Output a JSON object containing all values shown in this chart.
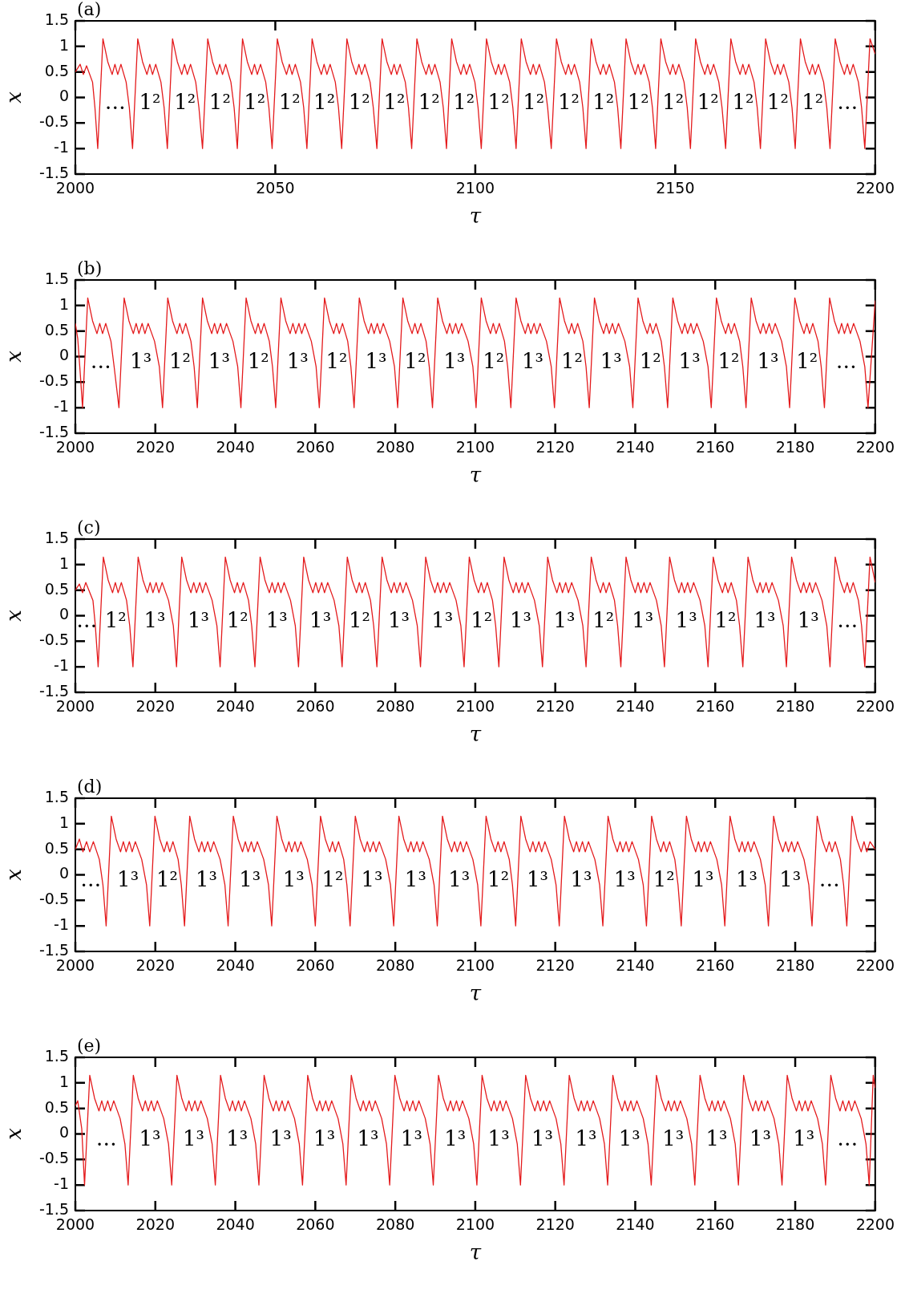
{
  "chart_data": [
    {
      "type": "line",
      "title": "(a)",
      "xlabel": "τ",
      "ylabel": "x",
      "color": "#e41a1c",
      "xlim": [
        2000,
        2200
      ],
      "ylim": [
        -1.5,
        1.5
      ],
      "xticks": [
        2000,
        2050,
        2100,
        2150,
        2200
      ],
      "yticks": [
        -1.5,
        -1,
        -0.5,
        0,
        0.5,
        1,
        1.5
      ],
      "x": [
        2000,
        2001.2,
        2002,
        2002.8,
        2004.3,
        2004.9,
        2005.6,
        2006.9,
        2008.1,
        2009.2,
        2009.9,
        2010.6,
        2011.4,
        2012.7,
        2013.5,
        2014.3,
        2015.6,
        2016.8,
        2017.9,
        2018.6,
        2019.3,
        2020.1,
        2021.4,
        2022.2,
        2023,
        2024.3,
        2025.5,
        2026.6,
        2027.3,
        2028,
        2028.8,
        2030.1,
        2030.9,
        2031.8,
        2033.1,
        2034.3,
        2035.4,
        2036.1,
        2036.8,
        2037.6,
        2038.9,
        2039.7,
        2040.5,
        2041.8,
        2043,
        2044.1,
        2044.8,
        2045.5,
        2046.3,
        2047.6,
        2048.4,
        2049.2,
        2050.5,
        2051.7,
        2052.8,
        2053.5,
        2054.2,
        2055,
        2056.3,
        2057.1,
        2057.9,
        2059.2,
        2060.4,
        2061.5,
        2062.2,
        2062.9,
        2063.7,
        2065,
        2065.8,
        2066.6,
        2067.9,
        2069.1,
        2070.2,
        2070.9,
        2071.6,
        2072.4,
        2073.7,
        2074.5,
        2075.4,
        2076.7,
        2077.9,
        2079,
        2079.7,
        2080.4,
        2081.2,
        2082.5,
        2083.3,
        2084.1,
        2085.4,
        2086.6,
        2087.7,
        2088.4,
        2089.1,
        2089.9,
        2091.2,
        2092,
        2092.8,
        2094.1,
        2095.3,
        2096.4,
        2097.1,
        2097.8,
        2098.6,
        2099.9,
        2100.7,
        2101.5,
        2102.8,
        2104,
        2105.1,
        2105.8,
        2106.5,
        2107.3,
        2108.6,
        2109.4,
        2110.2,
        2111.5,
        2112.7,
        2113.8,
        2114.5,
        2115.2,
        2116,
        2117.3,
        2118.1,
        2119,
        2120.3,
        2121.5,
        2122.6,
        2123.3,
        2124,
        2124.8,
        2126.1,
        2126.9,
        2127.7,
        2129,
        2130.2,
        2131.3,
        2132,
        2132.7,
        2133.5,
        2134.8,
        2135.6,
        2136.4,
        2137.7,
        2138.9,
        2140,
        2140.7,
        2141.4,
        2142.2,
        2143.5,
        2144.3,
        2145.1,
        2146.4,
        2147.6,
        2148.7,
        2149.4,
        2150.1,
        2150.9,
        2152.2,
        2153,
        2153.8,
        2155.1,
        2156.3,
        2157.4,
        2158.1,
        2158.8,
        2159.6,
        2160.9,
        2161.7,
        2162.6,
        2163.9,
        2165.1,
        2166.2,
        2166.9,
        2167.6,
        2168.4,
        2169.7,
        2170.5,
        2171.3,
        2172.6,
        2173.8,
        2174.9,
        2175.6,
        2176.3,
        2177.1,
        2178.4,
        2179.2,
        2180,
        2181.3,
        2182.5,
        2183.6,
        2184.3,
        2185,
        2185.8,
        2187.1,
        2187.9,
        2188.7,
        2190,
        2191.2,
        2192.3,
        2193,
        2193.7,
        2194.5,
        2195.8,
        2196.6,
        2197.4,
        2198.7,
        2200
      ],
      "values": [
        0.5,
        0.65,
        0.45,
        0.62,
        0.3,
        -0.2,
        -1,
        1.15,
        0.7,
        0.45,
        0.65,
        0.45,
        0.65,
        0.3,
        -0.2,
        -1,
        1.15,
        0.7,
        0.45,
        0.65,
        0.45,
        0.65,
        0.3,
        -0.2,
        -1,
        1.15,
        0.7,
        0.45,
        0.65,
        0.45,
        0.65,
        0.3,
        -0.2,
        -1,
        1.15,
        0.7,
        0.45,
        0.65,
        0.45,
        0.65,
        0.3,
        -0.2,
        -1,
        1.15,
        0.7,
        0.45,
        0.65,
        0.45,
        0.65,
        0.3,
        -0.2,
        -1,
        1.15,
        0.7,
        0.45,
        0.65,
        0.45,
        0.65,
        0.3,
        -0.2,
        -1,
        1.15,
        0.7,
        0.45,
        0.65,
        0.45,
        0.65,
        0.3,
        -0.2,
        -1,
        1.15,
        0.7,
        0.45,
        0.65,
        0.45,
        0.65,
        0.3,
        -0.2,
        -1,
        1.15,
        0.7,
        0.45,
        0.65,
        0.45,
        0.65,
        0.3,
        -0.2,
        -1,
        1.15,
        0.7,
        0.45,
        0.65,
        0.45,
        0.65,
        0.3,
        -0.2,
        -1,
        1.15,
        0.7,
        0.45,
        0.65,
        0.45,
        0.65,
        0.3,
        -0.2,
        -1,
        1.15,
        0.7,
        0.45,
        0.65,
        0.45,
        0.65,
        0.3,
        -0.2,
        -1,
        1.15,
        0.7,
        0.45,
        0.65,
        0.45,
        0.65,
        0.3,
        -0.2,
        -1,
        1.15,
        0.7,
        0.45,
        0.65,
        0.45,
        0.65,
        0.3,
        -0.2,
        -1,
        1.15,
        0.7,
        0.45,
        0.65,
        0.45,
        0.65,
        0.3,
        -0.2,
        -1,
        1.15,
        0.7,
        0.45,
        0.65,
        0.45,
        0.65,
        0.3,
        -0.2,
        -1,
        1.15,
        0.7,
        0.45,
        0.65,
        0.45,
        0.65,
        0.3,
        -0.2,
        -1,
        1.15,
        0.7,
        0.45,
        0.65,
        0.45,
        0.65,
        0.3,
        -0.2,
        -1,
        1.15,
        0.7,
        0.45,
        0.65,
        0.45,
        0.65,
        0.3,
        -0.2,
        -1,
        1.15,
        0.7,
        0.45,
        0.65,
        0.45,
        0.65,
        0.3,
        -0.2,
        -1,
        1.15,
        0.7,
        0.45,
        0.65,
        0.45,
        0.65,
        0.3,
        -0.2,
        -1,
        1.15,
        0.7,
        0.45,
        0.65,
        0.45,
        0.65,
        0.3,
        -0.2,
        -1,
        1.15,
        0.85
      ],
      "annotations": [
        "…",
        "1²",
        "1²",
        "1²",
        "1²",
        "1²",
        "1²",
        "1²",
        "1²",
        "1²",
        "1²",
        "1²",
        "1²",
        "1²",
        "1²",
        "1²",
        "1²",
        "1²",
        "1²",
        "1²",
        "1²",
        "…"
      ]
    },
    {
      "type": "line",
      "title": "(b)",
      "xlabel": "τ",
      "ylabel": "x",
      "color": "#e41a1c",
      "xlim": [
        2000,
        2200
      ],
      "ylim": [
        -1.5,
        1.5
      ],
      "xticks": [
        2000,
        2020,
        2040,
        2060,
        2080,
        2100,
        2120,
        2140,
        2160,
        2180,
        2200
      ],
      "yticks": [
        -1.5,
        -1,
        -0.5,
        0,
        0.5,
        1,
        1.5
      ],
      "x": [
        2000,
        2000.6,
        2001.2,
        2001.8,
        2003.1,
        2004.3,
        2005.4,
        2006.1,
        2006.8,
        2007.6,
        2008.9,
        2009.7,
        2010.9,
        2012.2,
        2013.4,
        2014.5,
        2015.2,
        2015.9,
        2016.7,
        2017.4,
        2018.2,
        2019.8,
        2021,
        2021.8,
        2023.1,
        2024.3,
        2025.4,
        2026.1,
        2026.8,
        2027.6,
        2028.9,
        2029.7,
        2030.5,
        2031.8,
        2033,
        2034.1,
        2034.8,
        2035.5,
        2036.3,
        2037,
        2037.8,
        2039.4,
        2040.6,
        2041.4,
        2042.7,
        2043.9,
        2045,
        2045.7,
        2046.4,
        2047.2,
        2048.5,
        2049.3,
        2050.1,
        2051.4,
        2052.6,
        2053.7,
        2054.4,
        2055.1,
        2055.9,
        2056.6,
        2057.4,
        2059,
        2060.2,
        2061,
        2062.3,
        2063.5,
        2064.6,
        2065.3,
        2066,
        2066.8,
        2068.1,
        2068.9,
        2069.7,
        2071,
        2072.2,
        2073.3,
        2074,
        2074.7,
        2075.5,
        2076.2,
        2077,
        2078.6,
        2079.8,
        2080.6,
        2081.9,
        2083.1,
        2084.2,
        2084.9,
        2085.6,
        2086.4,
        2087.7,
        2088.5,
        2089.3,
        2090.6,
        2091.8,
        2092.9,
        2093.6,
        2094.3,
        2095.1,
        2095.8,
        2096.6,
        2098.2,
        2099.4,
        2100.2,
        2101.5,
        2102.7,
        2103.8,
        2104.5,
        2105.2,
        2106,
        2107.3,
        2108.1,
        2108.9,
        2110.2,
        2111.4,
        2112.5,
        2113.2,
        2113.9,
        2114.7,
        2115.4,
        2116.2,
        2117.8,
        2119,
        2119.8,
        2121.1,
        2122.3,
        2123.4,
        2124.1,
        2124.8,
        2125.6,
        2126.9,
        2127.7,
        2128.5,
        2129.8,
        2131,
        2132.1,
        2132.8,
        2133.5,
        2134.3,
        2135,
        2135.8,
        2137.4,
        2138.6,
        2139.4,
        2140.7,
        2141.9,
        2143,
        2143.7,
        2144.4,
        2145.2,
        2146.5,
        2147.3,
        2148.1,
        2149.4,
        2150.6,
        2151.7,
        2152.4,
        2153.1,
        2153.9,
        2154.6,
        2155.4,
        2157,
        2158.2,
        2159,
        2160.3,
        2161.5,
        2162.6,
        2163.3,
        2164,
        2164.8,
        2166.1,
        2166.9,
        2167.7,
        2169,
        2170.2,
        2171.3,
        2172,
        2172.7,
        2173.5,
        2174.2,
        2175,
        2176.6,
        2177.8,
        2178.6,
        2179.9,
        2181.1,
        2182.2,
        2182.9,
        2183.6,
        2184.4,
        2185.7,
        2186.5,
        2187.3,
        2188.6,
        2189.8,
        2190.9,
        2191.6,
        2192.3,
        2193.1,
        2193.8,
        2194.6,
        2196.2,
        2197.4,
        2198.2,
        2200
      ],
      "values": [
        0.65,
        0.35,
        -0.3,
        -1,
        1.15,
        0.7,
        0.45,
        0.65,
        0.45,
        0.65,
        0.3,
        -0.2,
        -1,
        1.15,
        0.7,
        0.45,
        0.65,
        0.45,
        0.65,
        0.45,
        0.65,
        0.3,
        -0.2,
        -1,
        1.15,
        0.7,
        0.45,
        0.65,
        0.45,
        0.65,
        0.3,
        -0.2,
        -1,
        1.15,
        0.7,
        0.45,
        0.65,
        0.45,
        0.65,
        0.45,
        0.65,
        0.3,
        -0.2,
        -1,
        1.15,
        0.7,
        0.45,
        0.65,
        0.45,
        0.65,
        0.3,
        -0.2,
        -1,
        1.15,
        0.7,
        0.45,
        0.65,
        0.45,
        0.65,
        0.45,
        0.65,
        0.3,
        -0.2,
        -1,
        1.15,
        0.7,
        0.45,
        0.65,
        0.45,
        0.65,
        0.3,
        -0.2,
        -1,
        1.15,
        0.7,
        0.45,
        0.65,
        0.45,
        0.65,
        0.45,
        0.65,
        0.3,
        -0.2,
        -1,
        1.15,
        0.7,
        0.45,
        0.65,
        0.45,
        0.65,
        0.3,
        -0.2,
        -1,
        1.15,
        0.7,
        0.45,
        0.65,
        0.45,
        0.65,
        0.45,
        0.65,
        0.3,
        -0.2,
        -1,
        1.15,
        0.7,
        0.45,
        0.65,
        0.45,
        0.65,
        0.3,
        -0.2,
        -1,
        1.15,
        0.7,
        0.45,
        0.65,
        0.45,
        0.65,
        0.45,
        0.65,
        0.3,
        -0.2,
        -1,
        1.15,
        0.7,
        0.45,
        0.65,
        0.45,
        0.65,
        0.3,
        -0.2,
        -1,
        1.15,
        0.7,
        0.45,
        0.65,
        0.45,
        0.65,
        0.45,
        0.65,
        0.3,
        -0.2,
        -1,
        1.15,
        0.7,
        0.45,
        0.65,
        0.45,
        0.65,
        0.3,
        -0.2,
        -1,
        1.15,
        0.7,
        0.45,
        0.65,
        0.45,
        0.65,
        0.45,
        0.65,
        0.3,
        -0.2,
        -1,
        1.15,
        0.7,
        0.45,
        0.65,
        0.45,
        0.65,
        0.3,
        -0.2,
        -1,
        1.15,
        0.7,
        0.45,
        0.65,
        0.45,
        0.65,
        0.45,
        0.65,
        0.3,
        -0.2,
        -1,
        1.15,
        0.7,
        0.45,
        0.65,
        0.45,
        0.65,
        0.3,
        -0.2,
        -1,
        1.15,
        0.7,
        0.45,
        0.65,
        0.45,
        0.65,
        0.45,
        0.65,
        0.3,
        -0.2,
        -1,
        1.1
      ],
      "annotations": [
        "…",
        "1³",
        "1²",
        "1³",
        "1²",
        "1³",
        "1²",
        "1³",
        "1²",
        "1³",
        "1²",
        "1³",
        "1²",
        "1³",
        "1²",
        "1³",
        "1²",
        "1³",
        "1²",
        "…"
      ]
    },
    {
      "type": "line",
      "title": "(c)",
      "xlabel": "τ",
      "ylabel": "x",
      "color": "#e41a1c",
      "xlim": [
        2000,
        2200
      ],
      "ylim": [
        -1.5,
        1.5
      ],
      "xticks": [
        2000,
        2020,
        2040,
        2060,
        2080,
        2100,
        2120,
        2140,
        2160,
        2180,
        2200
      ],
      "yticks": [
        -1.5,
        -1,
        -0.5,
        0,
        0.5,
        1,
        1.5
      ],
      "x": [
        2000,
        2001,
        2001.8,
        2002.6,
        2004.4,
        2005,
        2005.7,
        2007,
        2008.2,
        2009.3,
        2010,
        2010.7,
        2011.5,
        2012.8,
        2013.6,
        2014.4,
        2015.7,
        2016.9,
        2018,
        2018.7,
        2019.4,
        2020.2,
        2020.9,
        2021.7,
        2023.3,
        2024.5,
        2025.3,
        2026.6,
        2027.8,
        2028.9,
        2029.6,
        2030.3,
        2031.1,
        2031.8,
        2032.6,
        2034.2,
        2035.4,
        2036.2,
        2037.5,
        2038.7,
        2039.8,
        2040.5,
        2041.2,
        2042,
        2043.3,
        2044.1,
        2044.9,
        2046.2,
        2047.4,
        2048.5,
        2049.2,
        2049.9,
        2050.7,
        2051.4,
        2052.2,
        2053.8,
        2055,
        2055.8,
        2057.1,
        2058.3,
        2059.4,
        2060.1,
        2060.8,
        2061.6,
        2062.3,
        2063.1,
        2064.7,
        2065.9,
        2066.7,
        2068,
        2069.2,
        2070.3,
        2071,
        2071.7,
        2072.5,
        2073.8,
        2074.6,
        2075.4,
        2076.7,
        2077.9,
        2079,
        2079.7,
        2080.4,
        2081.2,
        2081.9,
        2082.7,
        2084.3,
        2085.5,
        2086.3,
        2087.6,
        2088.8,
        2089.9,
        2090.6,
        2091.3,
        2092.1,
        2092.8,
        2093.6,
        2095.2,
        2096.4,
        2097.2,
        2098.5,
        2099.7,
        2100.8,
        2101.5,
        2102.2,
        2103,
        2104.3,
        2105.1,
        2105.9,
        2107.2,
        2108.4,
        2109.5,
        2110.2,
        2110.9,
        2111.7,
        2112.4,
        2113.2,
        2114.8,
        2116,
        2116.8,
        2118.1,
        2119.3,
        2120.4,
        2121.1,
        2121.8,
        2122.6,
        2123.3,
        2124.1,
        2125.7,
        2126.9,
        2127.7,
        2129,
        2130.2,
        2131.3,
        2132,
        2132.7,
        2133.5,
        2134.8,
        2135.6,
        2136.4,
        2137.7,
        2138.9,
        2140,
        2140.7,
        2141.4,
        2142.2,
        2142.9,
        2143.7,
        2145.3,
        2146.5,
        2147.3,
        2148.6,
        2149.8,
        2150.9,
        2151.6,
        2152.3,
        2153.1,
        2153.8,
        2154.6,
        2156.2,
        2157.4,
        2158.2,
        2159.5,
        2160.7,
        2161.8,
        2162.5,
        2163.2,
        2164,
        2165.3,
        2166.1,
        2166.9,
        2168.2,
        2169.4,
        2170.5,
        2171.2,
        2171.9,
        2172.7,
        2173.4,
        2174.2,
        2175.8,
        2177,
        2177.8,
        2179.1,
        2180.3,
        2181.4,
        2182.1,
        2182.8,
        2183.6,
        2184.3,
        2185.1,
        2186.7,
        2187.9,
        2188.7,
        2190,
        2191.2,
        2192.3,
        2193,
        2193.7,
        2194.5,
        2195.8,
        2196.6,
        2197.4,
        2198.7,
        2200
      ],
      "values": [
        0.5,
        0.62,
        0.45,
        0.65,
        0.3,
        -0.2,
        -1,
        1.15,
        0.7,
        0.45,
        0.65,
        0.45,
        0.65,
        0.3,
        -0.2,
        -1,
        1.15,
        0.7,
        0.45,
        0.65,
        0.45,
        0.65,
        0.45,
        0.65,
        0.3,
        -0.2,
        -1,
        1.15,
        0.7,
        0.45,
        0.65,
        0.45,
        0.65,
        0.45,
        0.65,
        0.3,
        -0.2,
        -1,
        1.15,
        0.7,
        0.45,
        0.65,
        0.45,
        0.65,
        0.3,
        -0.2,
        -1,
        1.15,
        0.7,
        0.45,
        0.65,
        0.45,
        0.65,
        0.45,
        0.65,
        0.3,
        -0.2,
        -1,
        1.15,
        0.7,
        0.45,
        0.65,
        0.45,
        0.65,
        0.45,
        0.65,
        0.3,
        -0.2,
        -1,
        1.15,
        0.7,
        0.45,
        0.65,
        0.45,
        0.65,
        0.3,
        -0.2,
        -1,
        1.15,
        0.7,
        0.45,
        0.65,
        0.45,
        0.65,
        0.45,
        0.65,
        0.3,
        -0.2,
        -1,
        1.15,
        0.7,
        0.45,
        0.65,
        0.45,
        0.65,
        0.45,
        0.65,
        0.3,
        -0.2,
        -1,
        1.15,
        0.7,
        0.45,
        0.65,
        0.45,
        0.65,
        0.3,
        -0.2,
        -1,
        1.15,
        0.7,
        0.45,
        0.65,
        0.45,
        0.65,
        0.45,
        0.65,
        0.3,
        -0.2,
        -1,
        1.15,
        0.7,
        0.45,
        0.65,
        0.45,
        0.65,
        0.45,
        0.65,
        0.3,
        -0.2,
        -1,
        1.15,
        0.7,
        0.45,
        0.65,
        0.45,
        0.65,
        0.3,
        -0.2,
        -1,
        1.15,
        0.7,
        0.45,
        0.65,
        0.45,
        0.65,
        0.45,
        0.65,
        0.3,
        -0.2,
        -1,
        1.15,
        0.7,
        0.45,
        0.65,
        0.45,
        0.65,
        0.45,
        0.65,
        0.3,
        -0.2,
        -1,
        1.15,
        0.7,
        0.45,
        0.65,
        0.45,
        0.65,
        0.3,
        -0.2,
        -1,
        1.15,
        0.7,
        0.45,
        0.65,
        0.45,
        0.65,
        0.45,
        0.65,
        0.3,
        -0.2,
        -1,
        1.15,
        0.7,
        0.45,
        0.65,
        0.45,
        0.65,
        0.45,
        0.65,
        0.3,
        -0.2,
        -1,
        1.15,
        0.7,
        0.45,
        0.65,
        0.45,
        0.65,
        0.3,
        -0.2,
        -1,
        1.15,
        0.65
      ],
      "annotations": [
        "…",
        "1²",
        "1³",
        "1³",
        "1²",
        "1³",
        "1³",
        "1²",
        "1³",
        "1³",
        "1²",
        "1³",
        "1³",
        "1²",
        "1³",
        "1³",
        "1²",
        "1³",
        "1³",
        "…"
      ]
    },
    {
      "type": "line",
      "title": "(d)",
      "xlabel": "τ",
      "ylabel": "x",
      "color": "#e41a1c",
      "xlim": [
        2000,
        2200
      ],
      "ylim": [
        -1.5,
        1.5
      ],
      "xticks": [
        2000,
        2020,
        2040,
        2060,
        2080,
        2100,
        2120,
        2140,
        2160,
        2180,
        2200
      ],
      "yticks": [
        -1.5,
        -1,
        -0.5,
        0,
        0.5,
        1,
        1.5
      ],
      "x": [
        2000,
        2001,
        2001.9,
        2002.8,
        2003.6,
        2004.5,
        2006,
        2006.9,
        2007.7,
        2009,
        2010.2,
        2011.3,
        2012,
        2012.7,
        2013.5,
        2014.2,
        2015,
        2016.6,
        2017.8,
        2018.6,
        2019.9,
        2021.1,
        2022.2,
        2022.9,
        2023.6,
        2024.4,
        2025.7,
        2026.5,
        2027.3,
        2028.6,
        2029.8,
        2030.9,
        2031.6,
        2032.3,
        2033.1,
        2033.8,
        2034.6,
        2036.2,
        2037.4,
        2038.2,
        2039.5,
        2040.7,
        2041.8,
        2042.5,
        2043.2,
        2044,
        2044.7,
        2045.5,
        2047.1,
        2048.3,
        2049.1,
        2050.4,
        2051.6,
        2052.7,
        2053.4,
        2054.1,
        2054.9,
        2055.6,
        2056.4,
        2058,
        2059.2,
        2060,
        2061.3,
        2062.5,
        2063.6,
        2064.3,
        2065,
        2065.8,
        2067.1,
        2067.9,
        2068.7,
        2070,
        2071.2,
        2072.3,
        2073,
        2073.7,
        2074.5,
        2075.2,
        2076,
        2077.6,
        2078.8,
        2079.6,
        2080.9,
        2082.1,
        2083.2,
        2083.9,
        2084.6,
        2085.4,
        2086.1,
        2086.9,
        2088.5,
        2089.7,
        2090.5,
        2091.8,
        2093,
        2094.1,
        2094.8,
        2095.5,
        2096.3,
        2097,
        2097.8,
        2099.4,
        2100.6,
        2101.4,
        2102.7,
        2103.9,
        2105,
        2105.7,
        2106.4,
        2107.2,
        2108.5,
        2109.3,
        2110.1,
        2111.4,
        2112.6,
        2113.7,
        2114.4,
        2115.1,
        2115.9,
        2116.6,
        2117.4,
        2119,
        2120.2,
        2121,
        2122.3,
        2123.5,
        2124.6,
        2125.3,
        2126,
        2126.8,
        2127.5,
        2128.3,
        2129.9,
        2131.1,
        2131.9,
        2133.2,
        2134.4,
        2135.5,
        2136.2,
        2136.9,
        2137.7,
        2138.4,
        2139.2,
        2140.8,
        2142,
        2142.8,
        2144.1,
        2145.3,
        2146.4,
        2147.1,
        2147.8,
        2148.6,
        2149.9,
        2150.7,
        2151.5,
        2152.8,
        2154,
        2155.1,
        2155.8,
        2156.5,
        2157.3,
        2158,
        2158.8,
        2160.4,
        2161.6,
        2162.4,
        2163.7,
        2164.9,
        2166,
        2166.7,
        2167.4,
        2168.2,
        2168.9,
        2169.7,
        2171.3,
        2172.5,
        2173.3,
        2174.6,
        2175.8,
        2176.9,
        2177.6,
        2178.3,
        2179.1,
        2179.8,
        2180.6,
        2182.2,
        2183.4,
        2184.2,
        2185.5,
        2186.7,
        2187.8,
        2188.5,
        2189.2,
        2190,
        2191.3,
        2192.1,
        2192.9,
        2194.2,
        2195.4,
        2196.5,
        2197.2,
        2197.9,
        2198.7,
        2200
      ],
      "values": [
        0.5,
        0.7,
        0.45,
        0.65,
        0.45,
        0.65,
        0.3,
        -0.2,
        -1,
        1.15,
        0.7,
        0.45,
        0.65,
        0.45,
        0.65,
        0.45,
        0.65,
        0.3,
        -0.2,
        -1,
        1.15,
        0.7,
        0.45,
        0.65,
        0.45,
        0.65,
        0.3,
        -0.2,
        -1,
        1.15,
        0.7,
        0.45,
        0.65,
        0.45,
        0.65,
        0.45,
        0.65,
        0.3,
        -0.2,
        -1,
        1.15,
        0.7,
        0.45,
        0.65,
        0.45,
        0.65,
        0.45,
        0.65,
        0.3,
        -0.2,
        -1,
        1.15,
        0.7,
        0.45,
        0.65,
        0.45,
        0.65,
        0.45,
        0.65,
        0.3,
        -0.2,
        -1,
        1.15,
        0.7,
        0.45,
        0.65,
        0.45,
        0.65,
        0.3,
        -0.2,
        -1,
        1.15,
        0.7,
        0.45,
        0.65,
        0.45,
        0.65,
        0.45,
        0.65,
        0.3,
        -0.2,
        -1,
        1.15,
        0.7,
        0.45,
        0.65,
        0.45,
        0.65,
        0.45,
        0.65,
        0.3,
        -0.2,
        -1,
        1.15,
        0.7,
        0.45,
        0.65,
        0.45,
        0.65,
        0.45,
        0.65,
        0.3,
        -0.2,
        -1,
        1.15,
        0.7,
        0.45,
        0.65,
        0.45,
        0.65,
        0.3,
        -0.2,
        -1,
        1.15,
        0.7,
        0.45,
        0.65,
        0.45,
        0.65,
        0.45,
        0.65,
        0.3,
        -0.2,
        -1,
        1.15,
        0.7,
        0.45,
        0.65,
        0.45,
        0.65,
        0.45,
        0.65,
        0.3,
        -0.2,
        -1,
        1.15,
        0.7,
        0.45,
        0.65,
        0.45,
        0.65,
        0.45,
        0.65,
        0.3,
        -0.2,
        -1,
        1.15,
        0.7,
        0.45,
        0.65,
        0.45,
        0.65,
        0.3,
        -0.2,
        -1,
        1.15,
        0.7,
        0.45,
        0.65,
        0.45,
        0.65,
        0.45,
        0.65,
        0.3,
        -0.2,
        -1,
        1.15,
        0.7,
        0.45,
        0.65,
        0.45,
        0.65,
        0.45,
        0.65,
        0.3,
        -0.2,
        -1,
        1.15,
        0.7,
        0.45,
        0.65,
        0.45,
        0.65,
        0.45,
        0.65,
        0.3,
        -0.2,
        -1,
        1.15,
        0.7,
        0.45,
        0.65,
        0.45,
        0.65,
        0.3,
        -0.2,
        -1,
        1.15,
        0.7,
        0.45,
        0.65,
        0.45,
        0.65,
        0.5
      ],
      "annotations": [
        "…",
        "1³",
        "1²",
        "1³",
        "1³",
        "1³",
        "1²",
        "1³",
        "1³",
        "1³",
        "1²",
        "1³",
        "1³",
        "1³",
        "1²",
        "1³",
        "1³",
        "1³",
        "…"
      ]
    },
    {
      "type": "line",
      "title": "(e)",
      "xlabel": "τ",
      "ylabel": "x",
      "color": "#e41a1c",
      "xlim": [
        2000,
        2200
      ],
      "ylim": [
        -1.5,
        1.5
      ],
      "xticks": [
        2000,
        2020,
        2040,
        2060,
        2080,
        2100,
        2120,
        2140,
        2160,
        2180,
        2200
      ],
      "yticks": [
        -1.5,
        -1,
        -0.5,
        0,
        0.5,
        1,
        1.5
      ],
      "x": [
        2000,
        2000.6,
        2001.6,
        2002.3,
        2003.6,
        2004.8,
        2005.9,
        2006.6,
        2007.3,
        2008.1,
        2008.8,
        2009.6,
        2011.2,
        2012.4,
        2013.2,
        2014.5,
        2015.7,
        2016.8,
        2017.5,
        2018.2,
        2019,
        2019.7,
        2020.5,
        2022.1,
        2023.3,
        2024.1,
        2025.4,
        2026.6,
        2027.7,
        2028.4,
        2029.1,
        2029.9,
        2030.6,
        2031.4,
        2033,
        2034.2,
        2035,
        2036.3,
        2037.5,
        2038.6,
        2039.3,
        2040,
        2040.8,
        2041.5,
        2042.3,
        2043.9,
        2045.1,
        2045.9,
        2047.2,
        2048.4,
        2049.5,
        2050.2,
        2050.9,
        2051.7,
        2052.4,
        2053.2,
        2054.8,
        2056,
        2056.8,
        2058.1,
        2059.3,
        2060.4,
        2061.1,
        2061.8,
        2062.6,
        2063.3,
        2064.1,
        2065.7,
        2066.9,
        2067.7,
        2069,
        2070.2,
        2071.3,
        2072,
        2072.7,
        2073.5,
        2074.2,
        2075,
        2076.6,
        2077.8,
        2078.6,
        2079.9,
        2081.1,
        2082.2,
        2082.9,
        2083.6,
        2084.4,
        2085.1,
        2085.9,
        2087.5,
        2088.7,
        2089.5,
        2090.8,
        2092,
        2093.1,
        2093.8,
        2094.5,
        2095.3,
        2096,
        2096.8,
        2098.4,
        2099.6,
        2100.4,
        2101.7,
        2102.9,
        2104,
        2104.7,
        2105.4,
        2106.2,
        2106.9,
        2107.7,
        2109.3,
        2110.5,
        2111.3,
        2112.6,
        2113.8,
        2114.9,
        2115.6,
        2116.3,
        2117.1,
        2117.8,
        2118.6,
        2120.2,
        2121.4,
        2122.2,
        2123.5,
        2124.7,
        2125.8,
        2126.5,
        2127.2,
        2128,
        2128.7,
        2129.5,
        2131.1,
        2132.3,
        2133.1,
        2134.4,
        2135.6,
        2136.7,
        2137.4,
        2138.1,
        2138.9,
        2139.6,
        2140.4,
        2142,
        2143.2,
        2144,
        2145.3,
        2146.5,
        2147.6,
        2148.3,
        2149,
        2149.8,
        2150.5,
        2151.3,
        2152.9,
        2154.1,
        2154.9,
        2156.2,
        2157.4,
        2158.5,
        2159.2,
        2159.9,
        2160.7,
        2161.4,
        2162.2,
        2163.8,
        2165,
        2165.8,
        2167.1,
        2168.3,
        2169.4,
        2170.1,
        2170.8,
        2171.6,
        2172.3,
        2173.1,
        2174.7,
        2175.9,
        2176.7,
        2178,
        2179.2,
        2180.3,
        2181,
        2181.7,
        2182.5,
        2183.2,
        2184,
        2185.6,
        2186.8,
        2187.6,
        2188.9,
        2190.1,
        2191.2,
        2191.9,
        2192.6,
        2193.4,
        2194.1,
        2194.9,
        2196.5,
        2197.7,
        2198.5,
        2199.5,
        2200
      ],
      "values": [
        0.55,
        0.65,
        0.1,
        -1,
        1.15,
        0.7,
        0.45,
        0.65,
        0.45,
        0.65,
        0.45,
        0.65,
        0.3,
        -0.2,
        -1,
        1.15,
        0.7,
        0.45,
        0.65,
        0.45,
        0.65,
        0.45,
        0.65,
        0.3,
        -0.2,
        -1,
        1.15,
        0.7,
        0.45,
        0.65,
        0.45,
        0.65,
        0.45,
        0.65,
        0.3,
        -0.2,
        -1,
        1.15,
        0.7,
        0.45,
        0.65,
        0.45,
        0.65,
        0.45,
        0.65,
        0.3,
        -0.2,
        -1,
        1.15,
        0.7,
        0.45,
        0.65,
        0.45,
        0.65,
        0.45,
        0.65,
        0.3,
        -0.2,
        -1,
        1.15,
        0.7,
        0.45,
        0.65,
        0.45,
        0.65,
        0.45,
        0.65,
        0.3,
        -0.2,
        -1,
        1.15,
        0.7,
        0.45,
        0.65,
        0.45,
        0.65,
        0.45,
        0.65,
        0.3,
        -0.2,
        -1,
        1.15,
        0.7,
        0.45,
        0.65,
        0.45,
        0.65,
        0.45,
        0.65,
        0.3,
        -0.2,
        -1,
        1.15,
        0.7,
        0.45,
        0.65,
        0.45,
        0.65,
        0.45,
        0.65,
        0.3,
        -0.2,
        -1,
        1.15,
        0.7,
        0.45,
        0.65,
        0.45,
        0.65,
        0.45,
        0.65,
        0.3,
        -0.2,
        -1,
        1.15,
        0.7,
        0.45,
        0.65,
        0.45,
        0.65,
        0.45,
        0.65,
        0.3,
        -0.2,
        -1,
        1.15,
        0.7,
        0.45,
        0.65,
        0.45,
        0.65,
        0.45,
        0.65,
        0.3,
        -0.2,
        -1,
        1.15,
        0.7,
        0.45,
        0.65,
        0.45,
        0.65,
        0.45,
        0.65,
        0.3,
        -0.2,
        -1,
        1.15,
        0.7,
        0.45,
        0.65,
        0.45,
        0.65,
        0.45,
        0.65,
        0.3,
        -0.2,
        -1,
        1.15,
        0.7,
        0.45,
        0.65,
        0.45,
        0.65,
        0.45,
        0.65,
        0.3,
        -0.2,
        -1,
        1.15,
        0.7,
        0.45,
        0.65,
        0.45,
        0.65,
        0.45,
        0.65,
        0.3,
        -0.2,
        -1,
        1.15,
        0.7,
        0.45,
        0.65,
        0.45,
        0.65,
        0.45,
        0.65,
        0.3,
        -0.2,
        -1,
        1.15,
        0.7,
        0.45,
        0.65,
        0.45,
        0.65,
        0.45,
        0.65,
        0.3,
        -0.2,
        -1,
        1.15,
        0.9
      ],
      "annotations": [
        "…",
        "1³",
        "1³",
        "1³",
        "1³",
        "1³",
        "1³",
        "1³",
        "1³",
        "1³",
        "1³",
        "1³",
        "1³",
        "1³",
        "1³",
        "1³",
        "1³",
        "…"
      ]
    }
  ]
}
